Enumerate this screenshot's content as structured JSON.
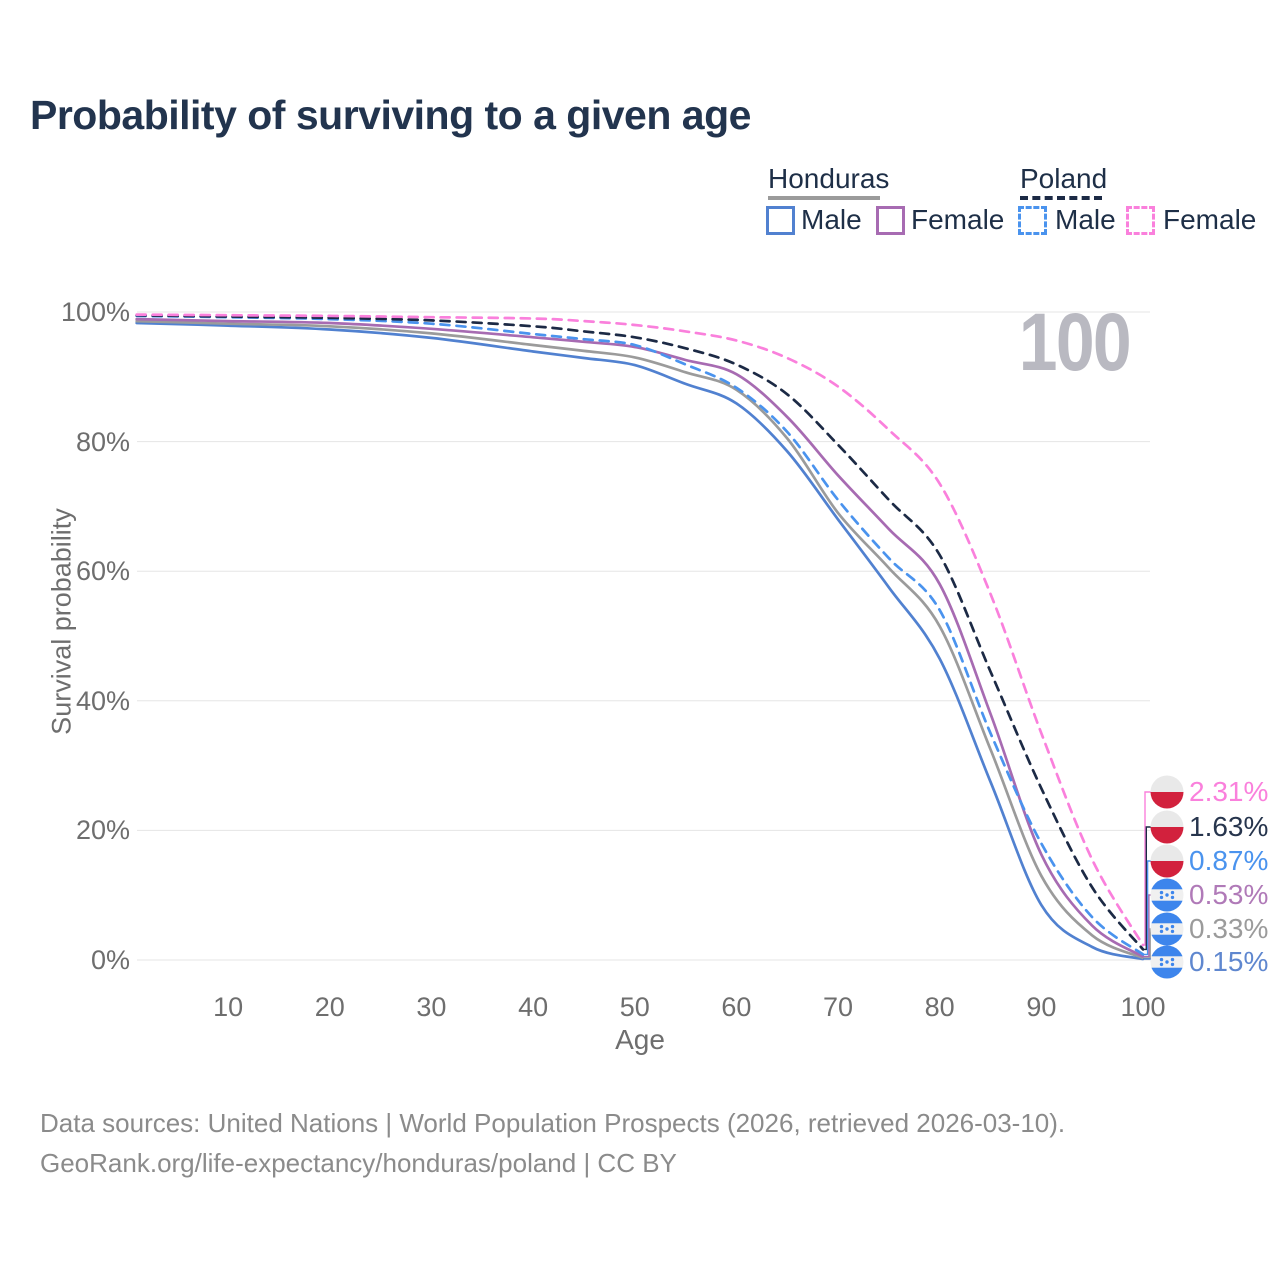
{
  "title": "Probability of surviving to a given age",
  "legend": {
    "groups": [
      {
        "name": "Honduras",
        "line_style": "solid",
        "marker_color": "#9b9b9b",
        "items": [
          {
            "label": "Male",
            "color": "#5181d0"
          },
          {
            "label": "Female",
            "color": "#a76bb2"
          }
        ]
      },
      {
        "name": "Poland",
        "line_style": "dashed",
        "marker_color": "#1c2a45",
        "items": [
          {
            "label": "Male",
            "color": "#4a93ee"
          },
          {
            "label": "Female",
            "color": "#fa80dc"
          }
        ]
      }
    ]
  },
  "chart_data": {
    "type": "line",
    "title": "Probability of surviving to a given age",
    "xlabel": "Age",
    "ylabel": "Survival probability",
    "xlim": [
      0,
      100
    ],
    "ylim": [
      0,
      100
    ],
    "grid": true,
    "age_marker": "100",
    "x_ticks": [
      10,
      20,
      30,
      40,
      50,
      60,
      70,
      80,
      90,
      100
    ],
    "y_ticks": [
      {
        "value": 100,
        "label": "100%"
      },
      {
        "value": 80,
        "label": "80%"
      },
      {
        "value": 60,
        "label": "60%"
      },
      {
        "value": 40,
        "label": "40%"
      },
      {
        "value": 20,
        "label": "20%"
      },
      {
        "value": 0,
        "label": "0%"
      }
    ],
    "ages": [
      1,
      10,
      20,
      30,
      40,
      45,
      50,
      55,
      60,
      65,
      70,
      75,
      80,
      85,
      90,
      95,
      100
    ],
    "series": [
      {
        "name": "Poland Female",
        "country": "Poland",
        "sex": "Female",
        "color": "#fa80dc",
        "dash": true,
        "flag": "poland",
        "end_label": "2.31%",
        "end_label_color": "#fa80dc",
        "values": [
          99.6,
          99.5,
          99.4,
          99.2,
          99.0,
          98.6,
          98.0,
          97.0,
          95.6,
          92.9,
          88.5,
          81.8,
          73.5,
          56.5,
          35.0,
          15.5,
          2.31
        ]
      },
      {
        "name": "Poland",
        "country": "Poland",
        "sex": "Both",
        "color": "#1c2a45",
        "dash": true,
        "flag": "poland",
        "end_label": "1.63%",
        "end_label_color": "#27354d",
        "values": [
          99.5,
          99.3,
          99.1,
          98.7,
          97.8,
          97.0,
          96.1,
          94.4,
          91.9,
          87.3,
          79.5,
          71.0,
          62.5,
          44.5,
          26.5,
          11.2,
          1.63
        ]
      },
      {
        "name": "Poland Male",
        "country": "Poland",
        "sex": "Male",
        "color": "#4a93ee",
        "dash": true,
        "flag": "poland",
        "end_label": "0.87%",
        "end_label_color": "#4a93ee",
        "values": [
          99.4,
          99.2,
          98.9,
          98.2,
          96.6,
          95.8,
          94.9,
          91.9,
          88.3,
          81.5,
          71.0,
          62.0,
          54.0,
          35.0,
          18.0,
          6.6,
          0.87
        ]
      },
      {
        "name": "Honduras Female",
        "country": "Honduras",
        "sex": "Female",
        "color": "#a76bb2",
        "dash": false,
        "flag": "honduras",
        "end_label": "0.53%",
        "end_label_color": "#b07ab8",
        "values": [
          98.9,
          98.6,
          98.3,
          97.4,
          96.1,
          95.4,
          94.6,
          92.6,
          90.4,
          83.8,
          74.8,
          66.5,
          58.0,
          38.0,
          16.3,
          5.3,
          0.53
        ]
      },
      {
        "name": "Honduras",
        "country": "Honduras",
        "sex": "Both",
        "color": "#9b9b9b",
        "dash": false,
        "flag": "honduras",
        "end_label": "0.33%",
        "end_label_color": "#9b9b9b",
        "values": [
          98.6,
          98.2,
          97.8,
          96.7,
          94.9,
          94.0,
          93.0,
          90.7,
          88.0,
          80.5,
          69.0,
          60.5,
          51.5,
          32.5,
          13.0,
          3.8,
          0.33
        ]
      },
      {
        "name": "Honduras Male",
        "country": "Honduras",
        "sex": "Male",
        "color": "#5181d0",
        "dash": false,
        "flag": "honduras",
        "end_label": "0.15%",
        "end_label_color": "#5f87cf",
        "values": [
          98.3,
          97.9,
          97.3,
          96.0,
          93.9,
          92.9,
          91.8,
          88.9,
          85.9,
          78.5,
          68.0,
          57.5,
          46.5,
          27.5,
          8.5,
          2.0,
          0.15
        ]
      }
    ]
  },
  "footer": {
    "line1": "Data sources: United Nations | World Population Prospects (2026, retrieved 2026-03-10).",
    "line2": "GeoRank.org/life-expectancy/honduras/poland | CC BY"
  }
}
